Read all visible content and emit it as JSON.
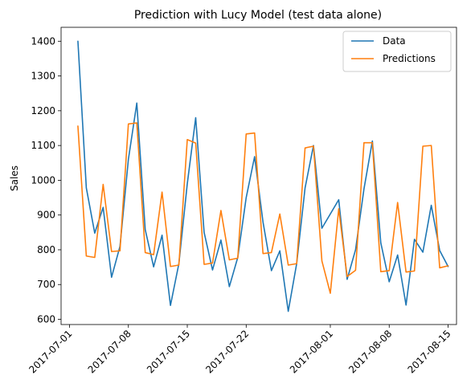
{
  "chart_data": {
    "type": "line",
    "title": "Prediction with Lucy Model (test data alone)",
    "xlabel": "",
    "ylabel": "Sales",
    "x_axis_kind": "date",
    "xlim": [
      "2017-06-30",
      "2017-08-16"
    ],
    "ylim": [
      585,
      1440
    ],
    "yticks": [
      600,
      700,
      800,
      900,
      1000,
      1100,
      1200,
      1300,
      1400
    ],
    "xticks": [
      "2017-07-01",
      "2017-07-08",
      "2017-07-15",
      "2017-07-22",
      "2017-08-01",
      "2017-08-08",
      "2017-08-15"
    ],
    "grid": false,
    "legend_position": "top-right",
    "series": [
      {
        "name": "Data",
        "color": "#1f77b4",
        "points": [
          [
            "2017-07-02",
            1400
          ],
          [
            "2017-07-03",
            978
          ],
          [
            "2017-07-04",
            848
          ],
          [
            "2017-07-05",
            922
          ],
          [
            "2017-07-06",
            721
          ],
          [
            "2017-07-07",
            810
          ],
          [
            "2017-07-08",
            1060
          ],
          [
            "2017-07-09",
            1222
          ],
          [
            "2017-07-10",
            858
          ],
          [
            "2017-07-11",
            751
          ],
          [
            "2017-07-12",
            842
          ],
          [
            "2017-07-13",
            640
          ],
          [
            "2017-07-14",
            760
          ],
          [
            "2017-07-15",
            990
          ],
          [
            "2017-07-16",
            1180
          ],
          [
            "2017-07-17",
            850
          ],
          [
            "2017-07-18",
            742
          ],
          [
            "2017-07-19",
            828
          ],
          [
            "2017-07-20",
            694
          ],
          [
            "2017-07-21",
            778
          ],
          [
            "2017-07-22",
            950
          ],
          [
            "2017-07-23",
            1068
          ],
          [
            "2017-07-24",
            880
          ],
          [
            "2017-07-25",
            740
          ],
          [
            "2017-07-26",
            797
          ],
          [
            "2017-07-27",
            623
          ],
          [
            "2017-07-28",
            760
          ],
          [
            "2017-07-29",
            978
          ],
          [
            "2017-07-30",
            1100
          ],
          [
            "2017-07-31",
            862
          ],
          [
            "2017-08-02",
            944
          ],
          [
            "2017-08-03",
            715
          ],
          [
            "2017-08-04",
            800
          ],
          [
            "2017-08-05",
            975
          ],
          [
            "2017-08-06",
            1113
          ],
          [
            "2017-08-07",
            820
          ],
          [
            "2017-08-08",
            708
          ],
          [
            "2017-08-09",
            785
          ],
          [
            "2017-08-10",
            641
          ],
          [
            "2017-08-11",
            830
          ],
          [
            "2017-08-12",
            793
          ],
          [
            "2017-08-13",
            928
          ],
          [
            "2017-08-14",
            798
          ],
          [
            "2017-08-15",
            752
          ]
        ]
      },
      {
        "name": "Predictions",
        "color": "#ff7f0e",
        "points": [
          [
            "2017-07-02",
            1156
          ],
          [
            "2017-07-03",
            782
          ],
          [
            "2017-07-04",
            778
          ],
          [
            "2017-07-05",
            988
          ],
          [
            "2017-07-06",
            795
          ],
          [
            "2017-07-07",
            797
          ],
          [
            "2017-07-08",
            1162
          ],
          [
            "2017-07-09",
            1165
          ],
          [
            "2017-07-10",
            792
          ],
          [
            "2017-07-11",
            786
          ],
          [
            "2017-07-12",
            966
          ],
          [
            "2017-07-13",
            752
          ],
          [
            "2017-07-14",
            756
          ],
          [
            "2017-07-15",
            1117
          ],
          [
            "2017-07-16",
            1107
          ],
          [
            "2017-07-17",
            758
          ],
          [
            "2017-07-18",
            762
          ],
          [
            "2017-07-19",
            913
          ],
          [
            "2017-07-20",
            771
          ],
          [
            "2017-07-21",
            776
          ],
          [
            "2017-07-22",
            1133
          ],
          [
            "2017-07-23",
            1136
          ],
          [
            "2017-07-24",
            789
          ],
          [
            "2017-07-25",
            792
          ],
          [
            "2017-07-26",
            903
          ],
          [
            "2017-07-27",
            756
          ],
          [
            "2017-07-28",
            760
          ],
          [
            "2017-07-29",
            1093
          ],
          [
            "2017-07-30",
            1098
          ],
          [
            "2017-07-31",
            768
          ],
          [
            "2017-08-01",
            675
          ],
          [
            "2017-08-02",
            918
          ],
          [
            "2017-08-03",
            723
          ],
          [
            "2017-08-04",
            741
          ],
          [
            "2017-08-05",
            1108
          ],
          [
            "2017-08-06",
            1108
          ],
          [
            "2017-08-07",
            737
          ],
          [
            "2017-08-08",
            740
          ],
          [
            "2017-08-09",
            936
          ],
          [
            "2017-08-10",
            736
          ],
          [
            "2017-08-11",
            739
          ],
          [
            "2017-08-12",
            1098
          ],
          [
            "2017-08-13",
            1100
          ],
          [
            "2017-08-14",
            748
          ],
          [
            "2017-08-15",
            754
          ]
        ]
      }
    ]
  }
}
